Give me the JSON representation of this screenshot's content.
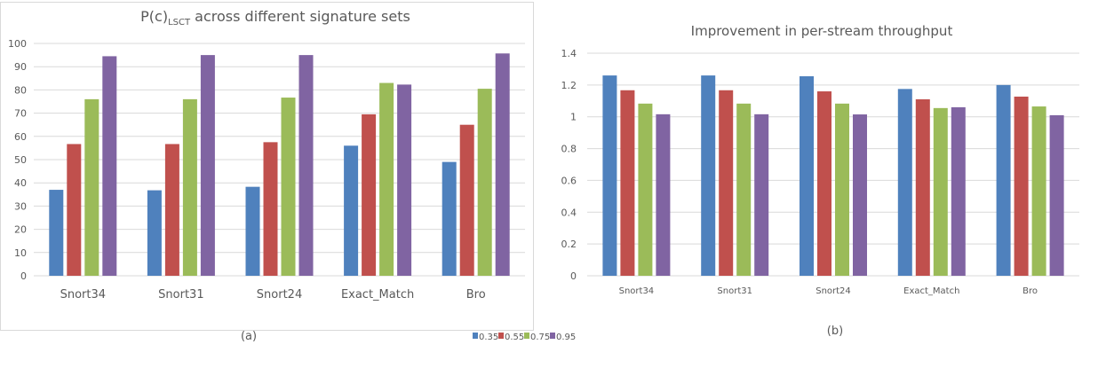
{
  "chart_data": [
    {
      "type": "bar",
      "title_main": "P(c)",
      "title_sub": "LSCT",
      "title_rest": " across different signature sets",
      "panel_label": "(a)",
      "categories": [
        "Snort34",
        "Snort31",
        "Snort24",
        "Exact_Match",
        "Bro"
      ],
      "ylim": [
        0,
        100
      ],
      "yticks": [
        0,
        10,
        20,
        30,
        40,
        50,
        60,
        70,
        80,
        90,
        100
      ],
      "grid": true,
      "series": [
        {
          "name": "0.35",
          "color": "#4f81bd",
          "values": [
            37.0,
            36.8,
            38.3,
            56.0,
            49.0
          ]
        },
        {
          "name": "0.55",
          "color": "#c0504d",
          "values": [
            56.7,
            56.7,
            57.5,
            69.5,
            65.0
          ]
        },
        {
          "name": "0.75",
          "color": "#9bbb59",
          "values": [
            76.0,
            76.0,
            76.7,
            83.0,
            80.5
          ]
        },
        {
          "name": "0.95",
          "color": "#8064a2",
          "values": [
            94.5,
            95.0,
            95.0,
            82.3,
            95.7
          ]
        }
      ]
    },
    {
      "type": "bar",
      "title": "Improvement in per-stream throughput",
      "panel_label": "(b)",
      "categories": [
        "Snort34",
        "Snort31",
        "Snort24",
        "Exact_Match",
        "Bro"
      ],
      "ylim": [
        0,
        1.4
      ],
      "yticks": [
        "0",
        "0.2",
        "0.4",
        "0.6",
        "0.8",
        "1",
        "1.2",
        "1.4"
      ],
      "grid": true,
      "series": [
        {
          "name": "0.35",
          "color": "#4f81bd",
          "values": [
            1.26,
            1.26,
            1.255,
            1.175,
            1.2
          ]
        },
        {
          "name": "0.55",
          "color": "#c0504d",
          "values": [
            1.167,
            1.167,
            1.16,
            1.11,
            1.127
          ]
        },
        {
          "name": "0.75",
          "color": "#9bbb59",
          "values": [
            1.083,
            1.083,
            1.083,
            1.055,
            1.065
          ]
        },
        {
          "name": "0.95",
          "color": "#8064a2",
          "values": [
            1.016,
            1.016,
            1.015,
            1.06,
            1.01
          ]
        }
      ]
    }
  ],
  "legend": {
    "position": "bottom",
    "items": [
      "0.35",
      "0.55",
      "0.75",
      "0.95"
    ]
  }
}
